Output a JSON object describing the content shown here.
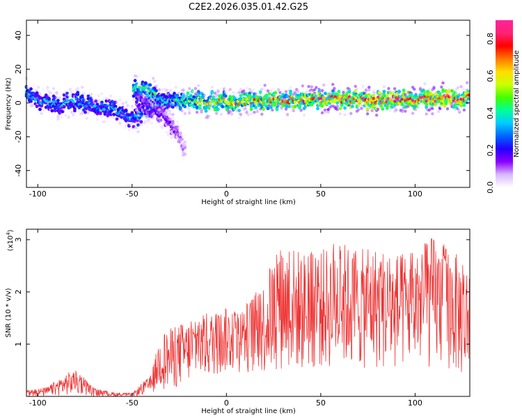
{
  "title": "C2E2.2026.035.01.42.G25",
  "chart_data": [
    {
      "type": "heatmap",
      "xlabel": "Height of straight line (km)",
      "ylabel": "Frequency (Hz)",
      "xlim": [
        -106,
        129
      ],
      "ylim": [
        -50,
        49
      ],
      "xticks": [
        -100,
        -50,
        0,
        50,
        100
      ],
      "yticks": [
        -40,
        -20,
        0,
        20,
        40
      ],
      "colorbar": {
        "label": "Normalized spectral amplitude",
        "range": [
          0,
          0.9
        ],
        "ticks": [
          "0.0",
          "0.2",
          "0.4",
          "0.6",
          "0.8"
        ],
        "tick_values": [
          0,
          0.2,
          0.4,
          0.6,
          0.8
        ],
        "colormap": [
          "#ffffff",
          "#d9b8ff",
          "#8a00ff",
          "#2400ff",
          "#0066ff",
          "#00ccff",
          "#00ff99",
          "#44ff00",
          "#ccff00",
          "#ffdd00",
          "#ff7700",
          "#ff0000",
          "#ff2277",
          "#ff2299"
        ]
      },
      "ridges": [
        {
          "name": "main",
          "x": [
            -106,
            -100,
            -90,
            -80,
            -70,
            -60,
            -55,
            -50,
            -40,
            -30,
            -25,
            -20,
            -10,
            0,
            20,
            40,
            60,
            80,
            100,
            129
          ],
          "freq": [
            6,
            2,
            -1,
            1,
            -2,
            -3,
            -6,
            -10,
            -2,
            1,
            0,
            2,
            1,
            1,
            1,
            2,
            2,
            2,
            2,
            3
          ],
          "amp": [
            0.35,
            0.3,
            0.3,
            0.3,
            0.3,
            0.3,
            0.3,
            0.3,
            0.3,
            0.35,
            0.4,
            0.5,
            0.55,
            0.6,
            0.6,
            0.65,
            0.7,
            0.7,
            0.75,
            0.7
          ]
        },
        {
          "name": "branch1",
          "x": [
            -50,
            -45,
            -40,
            -35,
            -30
          ],
          "freq": [
            10,
            8,
            6,
            3,
            -2
          ],
          "amp": [
            0.4,
            0.4,
            0.45,
            0.35,
            0.3
          ]
        },
        {
          "name": "branch2",
          "x": [
            -48,
            -42,
            -36,
            -30,
            -25,
            -22
          ],
          "freq": [
            2,
            -2,
            -6,
            -12,
            -20,
            -28
          ],
          "amp": [
            0.2,
            0.2,
            0.18,
            0.15,
            0.12,
            0.08
          ]
        }
      ]
    },
    {
      "type": "line",
      "xlabel": "Height of straight line (km)",
      "ylabel": "SNR (10 * v/v)",
      "y_multiplier": "(x10",
      "y_multiplier_exp": "4",
      "y_multiplier_close": ")",
      "xlim": [
        -106,
        129
      ],
      "ylim": [
        0,
        3.2
      ],
      "xticks": [
        -100,
        -50,
        0,
        50,
        100
      ],
      "yticks": [
        1,
        2,
        3
      ],
      "color": "#ee3333",
      "envelope": {
        "x": [
          -106,
          -95,
          -85,
          -80,
          -75,
          -70,
          -60,
          -50,
          -45,
          -40,
          -35,
          -30,
          -20,
          -10,
          0,
          10,
          20,
          25,
          30,
          40,
          50,
          60,
          70,
          80,
          90,
          100,
          110,
          120,
          129
        ],
        "max": [
          0.12,
          0.18,
          0.45,
          0.5,
          0.35,
          0.15,
          0.08,
          0.06,
          0.25,
          0.4,
          1.2,
          1.3,
          1.45,
          1.6,
          1.7,
          1.75,
          2.2,
          2.7,
          2.95,
          2.8,
          2.8,
          3.0,
          2.8,
          2.9,
          2.7,
          2.8,
          3.1,
          2.8,
          2.5
        ],
        "min": [
          0,
          0,
          0.02,
          0.03,
          0.02,
          0,
          0,
          0,
          0.02,
          0.05,
          0.15,
          0.1,
          0.25,
          0.35,
          0.45,
          0.45,
          0.4,
          0.45,
          0.5,
          0.45,
          0.5,
          0.5,
          0.5,
          0.5,
          0.45,
          0.5,
          0.5,
          0.45,
          0.2
        ]
      }
    }
  ]
}
